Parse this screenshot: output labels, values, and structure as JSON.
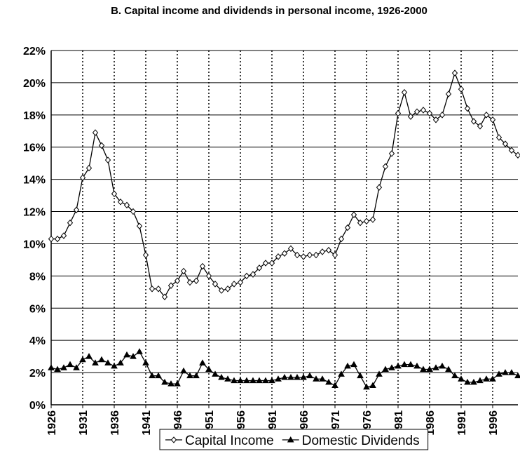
{
  "chart_data": {
    "type": "line",
    "title": "B. Capital income and dividends in personal income, 1926-2000",
    "x": [
      1926,
      1927,
      1928,
      1929,
      1930,
      1931,
      1932,
      1933,
      1934,
      1935,
      1936,
      1937,
      1938,
      1939,
      1940,
      1941,
      1942,
      1943,
      1944,
      1945,
      1946,
      1947,
      1948,
      1949,
      1950,
      1951,
      1952,
      1953,
      1954,
      1955,
      1956,
      1957,
      1958,
      1959,
      1960,
      1961,
      1962,
      1963,
      1964,
      1965,
      1966,
      1967,
      1968,
      1969,
      1970,
      1971,
      1972,
      1973,
      1974,
      1975,
      1976,
      1977,
      1978,
      1979,
      1980,
      1981,
      1982,
      1983,
      1984,
      1985,
      1986,
      1987,
      1988,
      1989,
      1990,
      1991,
      1992,
      1993,
      1994,
      1995,
      1996,
      1997,
      1998,
      1999,
      2000
    ],
    "series": [
      {
        "name": "Capital Income",
        "color": "#000000",
        "marker": "diamond",
        "values": [
          10.3,
          10.3,
          10.5,
          11.3,
          12.1,
          14.1,
          14.7,
          16.9,
          16.1,
          15.2,
          13.1,
          12.6,
          12.4,
          12.0,
          11.1,
          9.3,
          7.2,
          7.2,
          6.7,
          7.4,
          7.7,
          8.3,
          7.6,
          7.7,
          8.6,
          8.0,
          7.5,
          7.1,
          7.2,
          7.5,
          7.6,
          8.0,
          8.1,
          8.5,
          8.8,
          8.8,
          9.2,
          9.4,
          9.7,
          9.3,
          9.2,
          9.3,
          9.3,
          9.5,
          9.6,
          9.3,
          10.3,
          11.0,
          11.8,
          11.3,
          11.4,
          11.5,
          13.5,
          14.8,
          15.6,
          18.1,
          19.4,
          17.9,
          18.2,
          18.3,
          18.1,
          17.7,
          18.0,
          19.3,
          20.6,
          19.6,
          18.4,
          17.6,
          17.3,
          18.0,
          17.7,
          16.6,
          16.2,
          15.8,
          15.5
        ]
      },
      {
        "name": "Domestic Dividends",
        "color": "#000000",
        "marker": "triangle",
        "values": [
          2.3,
          2.2,
          2.3,
          2.5,
          2.3,
          2.8,
          3.0,
          2.6,
          2.8,
          2.6,
          2.4,
          2.6,
          3.1,
          3.0,
          3.3,
          2.6,
          1.8,
          1.8,
          1.4,
          1.3,
          1.3,
          2.1,
          1.8,
          1.8,
          2.6,
          2.2,
          1.9,
          1.7,
          1.6,
          1.5,
          1.5,
          1.5,
          1.5,
          1.5,
          1.5,
          1.5,
          1.6,
          1.7,
          1.7,
          1.7,
          1.7,
          1.8,
          1.6,
          1.6,
          1.4,
          1.2,
          1.9,
          2.4,
          2.5,
          1.8,
          1.1,
          1.2,
          1.9,
          2.2,
          2.3,
          2.4,
          2.5,
          2.5,
          2.4,
          2.2,
          2.2,
          2.3,
          2.4,
          2.2,
          1.8,
          1.6,
          1.4,
          1.4,
          1.5,
          1.6,
          1.6,
          1.9,
          2.0,
          2.0,
          1.8
        ]
      }
    ],
    "xlim": [
      1926,
      2000
    ],
    "xticks": [
      1926,
      1931,
      1936,
      1941,
      1946,
      1951,
      1956,
      1961,
      1966,
      1971,
      1976,
      1981,
      1986,
      1991,
      1996
    ],
    "ylim": [
      0,
      22
    ],
    "yticks": [
      {
        "value": 0,
        "label": "0%"
      },
      {
        "value": 2,
        "label": "2%"
      },
      {
        "value": 4,
        "label": "4%"
      },
      {
        "value": 6,
        "label": "6%"
      },
      {
        "value": 8,
        "label": "8%"
      },
      {
        "value": 10,
        "label": "10%"
      },
      {
        "value": 12,
        "label": "12%"
      },
      {
        "value": 14,
        "label": "14%"
      },
      {
        "value": 16,
        "label": "16%"
      },
      {
        "value": 18,
        "label": "18%"
      },
      {
        "value": 20,
        "label": "20%"
      },
      {
        "value": 22,
        "label": "22%"
      }
    ],
    "grid": true,
    "legend": "bottom"
  }
}
